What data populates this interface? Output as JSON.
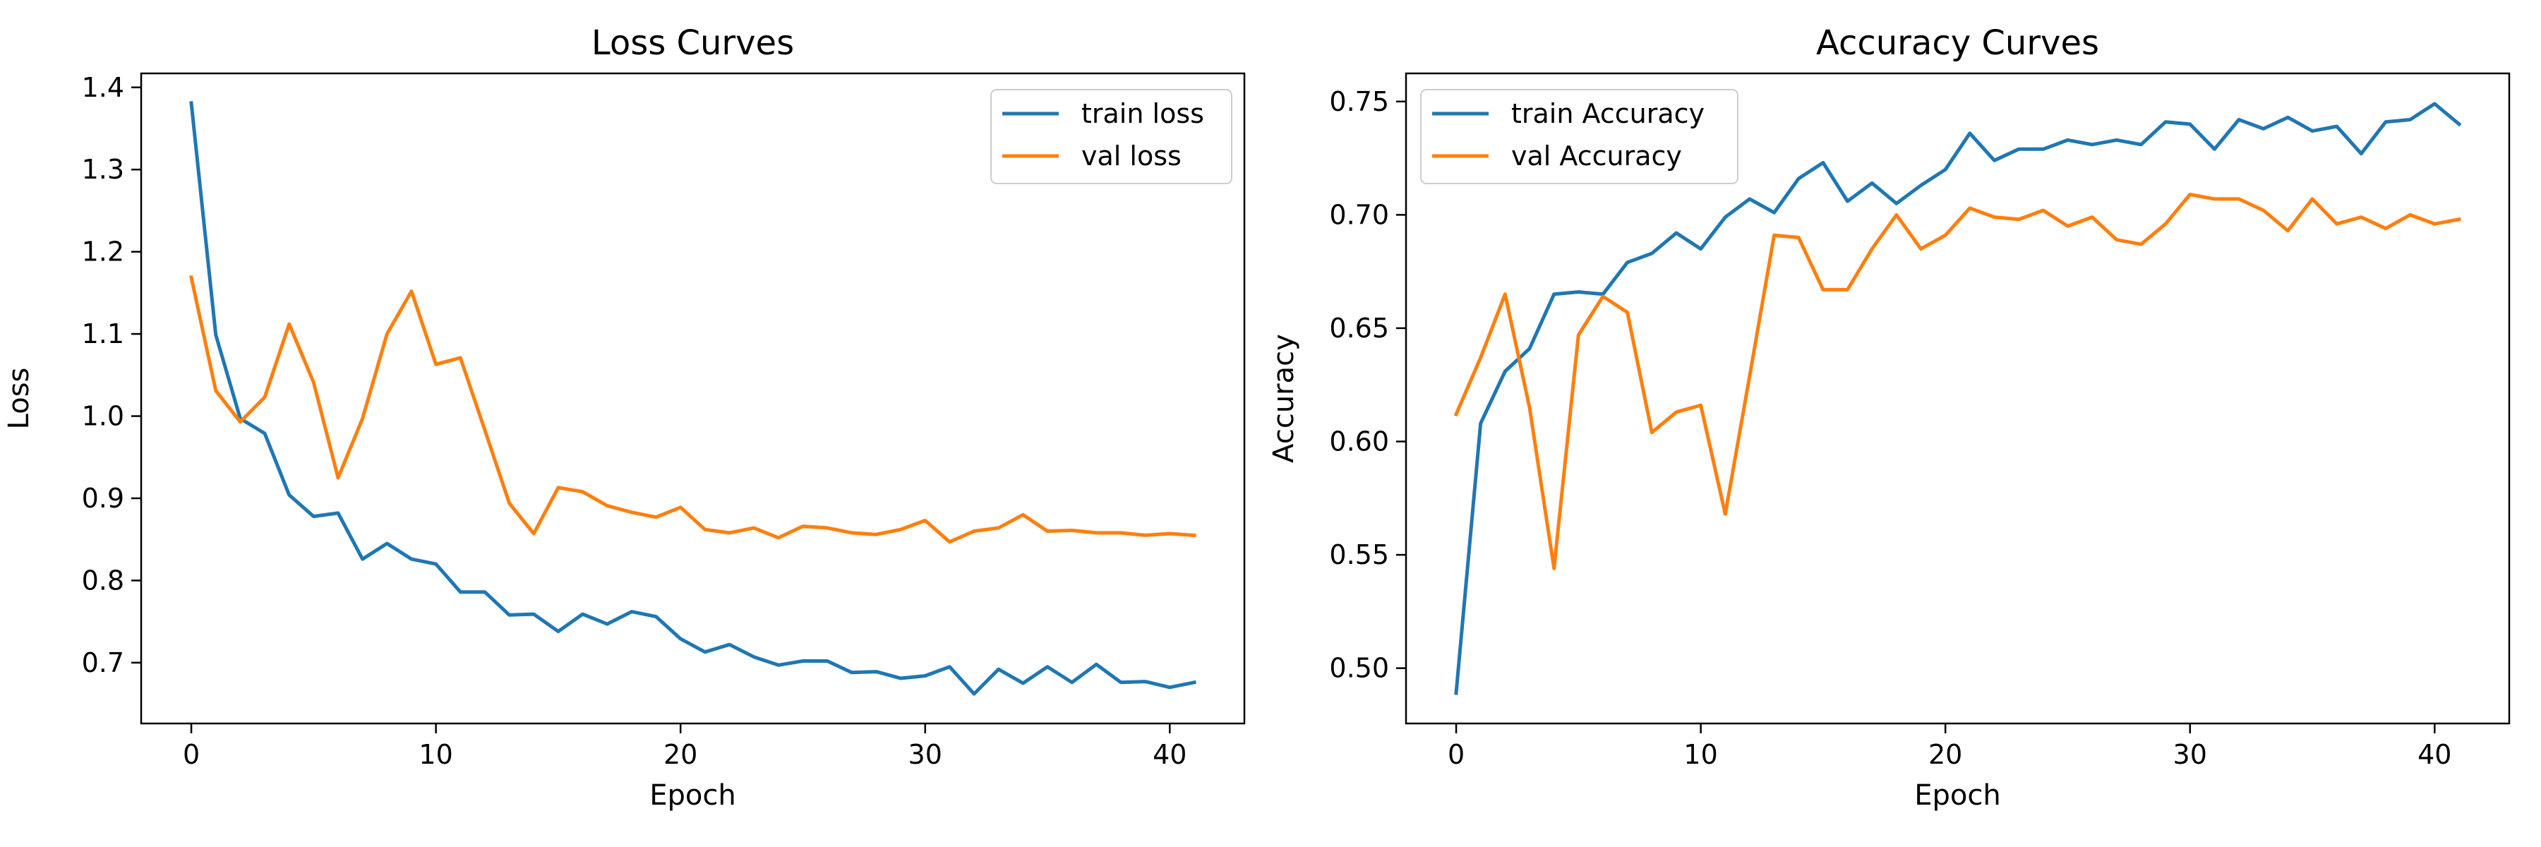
{
  "chart_data": [
    {
      "type": "line",
      "title": "Loss Curves",
      "xlabel": "Epoch",
      "ylabel": "Loss",
      "xlim": [
        -2.05,
        43.05
      ],
      "ylim": [
        0.626,
        1.417
      ],
      "xticks": [
        0,
        10,
        20,
        30,
        40
      ],
      "yticks": [
        0.7,
        0.8,
        0.9,
        1.0,
        1.1,
        1.2,
        1.3,
        1.4
      ],
      "xtick_labels": [
        "0",
        "10",
        "20",
        "30",
        "40"
      ],
      "ytick_labels": [
        "0.7",
        "0.8",
        "0.9",
        "1.0",
        "1.1",
        "1.2",
        "1.3",
        "1.4"
      ],
      "grid": false,
      "legend_position": "top-right",
      "x": [
        0,
        1,
        2,
        3,
        4,
        5,
        6,
        7,
        8,
        9,
        10,
        11,
        12,
        13,
        14,
        15,
        16,
        17,
        18,
        19,
        20,
        21,
        22,
        23,
        24,
        25,
        26,
        27,
        28,
        29,
        30,
        31,
        32,
        33,
        34,
        35,
        36,
        37,
        38,
        39,
        40,
        41
      ],
      "series": [
        {
          "name": "train loss",
          "color": "#1f77b4",
          "values": [
            1.381,
            1.099,
            0.997,
            0.979,
            0.904,
            0.878,
            0.882,
            0.826,
            0.845,
            0.826,
            0.82,
            0.786,
            0.786,
            0.758,
            0.759,
            0.738,
            0.759,
            0.747,
            0.762,
            0.756,
            0.729,
            0.713,
            0.722,
            0.707,
            0.697,
            0.702,
            0.702,
            0.688,
            0.689,
            0.681,
            0.684,
            0.695,
            0.662,
            0.692,
            0.675,
            0.695,
            0.676,
            0.698,
            0.676,
            0.677,
            0.67,
            0.676
          ]
        },
        {
          "name": "val loss",
          "color": "#ff7f0e",
          "values": [
            1.169,
            1.031,
            0.993,
            1.023,
            1.112,
            1.041,
            0.925,
            0.997,
            1.1,
            1.152,
            1.063,
            1.071,
            0.983,
            0.894,
            0.857,
            0.913,
            0.908,
            0.891,
            0.883,
            0.877,
            0.889,
            0.862,
            0.858,
            0.864,
            0.852,
            0.866,
            0.864,
            0.858,
            0.856,
            0.862,
            0.873,
            0.847,
            0.86,
            0.864,
            0.88,
            0.86,
            0.861,
            0.858,
            0.858,
            0.855,
            0.857,
            0.855
          ]
        }
      ]
    },
    {
      "type": "line",
      "title": "Accuracy Curves",
      "xlabel": "Epoch",
      "ylabel": "Accuracy",
      "xlim": [
        -2.05,
        43.05
      ],
      "ylim": [
        0.4756,
        0.7624
      ],
      "xticks": [
        0,
        10,
        20,
        30,
        40
      ],
      "yticks": [
        0.5,
        0.55,
        0.6,
        0.65,
        0.7,
        0.75
      ],
      "xtick_labels": [
        "0",
        "10",
        "20",
        "30",
        "40"
      ],
      "ytick_labels": [
        "0.50",
        "0.55",
        "0.60",
        "0.65",
        "0.70",
        "0.75"
      ],
      "grid": false,
      "legend_position": "top-left",
      "x": [
        0,
        1,
        2,
        3,
        4,
        5,
        6,
        7,
        8,
        9,
        10,
        11,
        12,
        13,
        14,
        15,
        16,
        17,
        18,
        19,
        20,
        21,
        22,
        23,
        24,
        25,
        26,
        27,
        28,
        29,
        30,
        31,
        32,
        33,
        34,
        35,
        36,
        37,
        38,
        39,
        40,
        41
      ],
      "series": [
        {
          "name": "train Accuracy",
          "color": "#1f77b4",
          "values": [
            0.489,
            0.608,
            0.631,
            0.641,
            0.665,
            0.666,
            0.665,
            0.679,
            0.683,
            0.692,
            0.685,
            0.699,
            0.707,
            0.701,
            0.716,
            0.723,
            0.706,
            0.714,
            0.705,
            0.713,
            0.72,
            0.736,
            0.724,
            0.729,
            0.729,
            0.733,
            0.731,
            0.733,
            0.731,
            0.741,
            0.74,
            0.729,
            0.742,
            0.738,
            0.743,
            0.737,
            0.739,
            0.727,
            0.741,
            0.742,
            0.749,
            0.74
          ]
        },
        {
          "name": "val Accuracy",
          "color": "#ff7f0e",
          "values": [
            0.612,
            0.637,
            0.665,
            0.615,
            0.544,
            0.647,
            0.664,
            0.657,
            0.604,
            0.613,
            0.616,
            0.568,
            0.629,
            0.691,
            0.69,
            0.667,
            0.667,
            0.685,
            0.7,
            0.685,
            0.691,
            0.703,
            0.699,
            0.698,
            0.702,
            0.695,
            0.699,
            0.689,
            0.687,
            0.696,
            0.709,
            0.707,
            0.707,
            0.702,
            0.693,
            0.707,
            0.696,
            0.699,
            0.694,
            0.7,
            0.696,
            0.698
          ]
        }
      ]
    }
  ]
}
